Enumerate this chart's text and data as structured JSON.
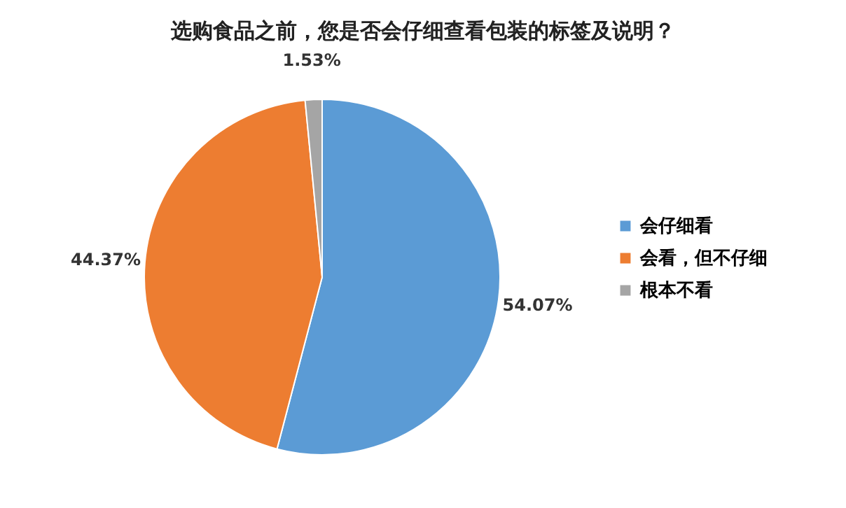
{
  "chart_data": {
    "type": "pie",
    "title": "选购食品之前，您是否会仔细查看包装的标签及说明？",
    "categories": [
      "会仔细看",
      "会看，但不仔细",
      "根本不看"
    ],
    "values": [
      54.07,
      44.37,
      1.53
    ],
    "colors": [
      "#5b9bd5",
      "#ed7d31",
      "#a5a5a5"
    ],
    "value_labels": [
      "54.07%",
      "44.37%",
      "1.53%"
    ],
    "legend": "right"
  }
}
